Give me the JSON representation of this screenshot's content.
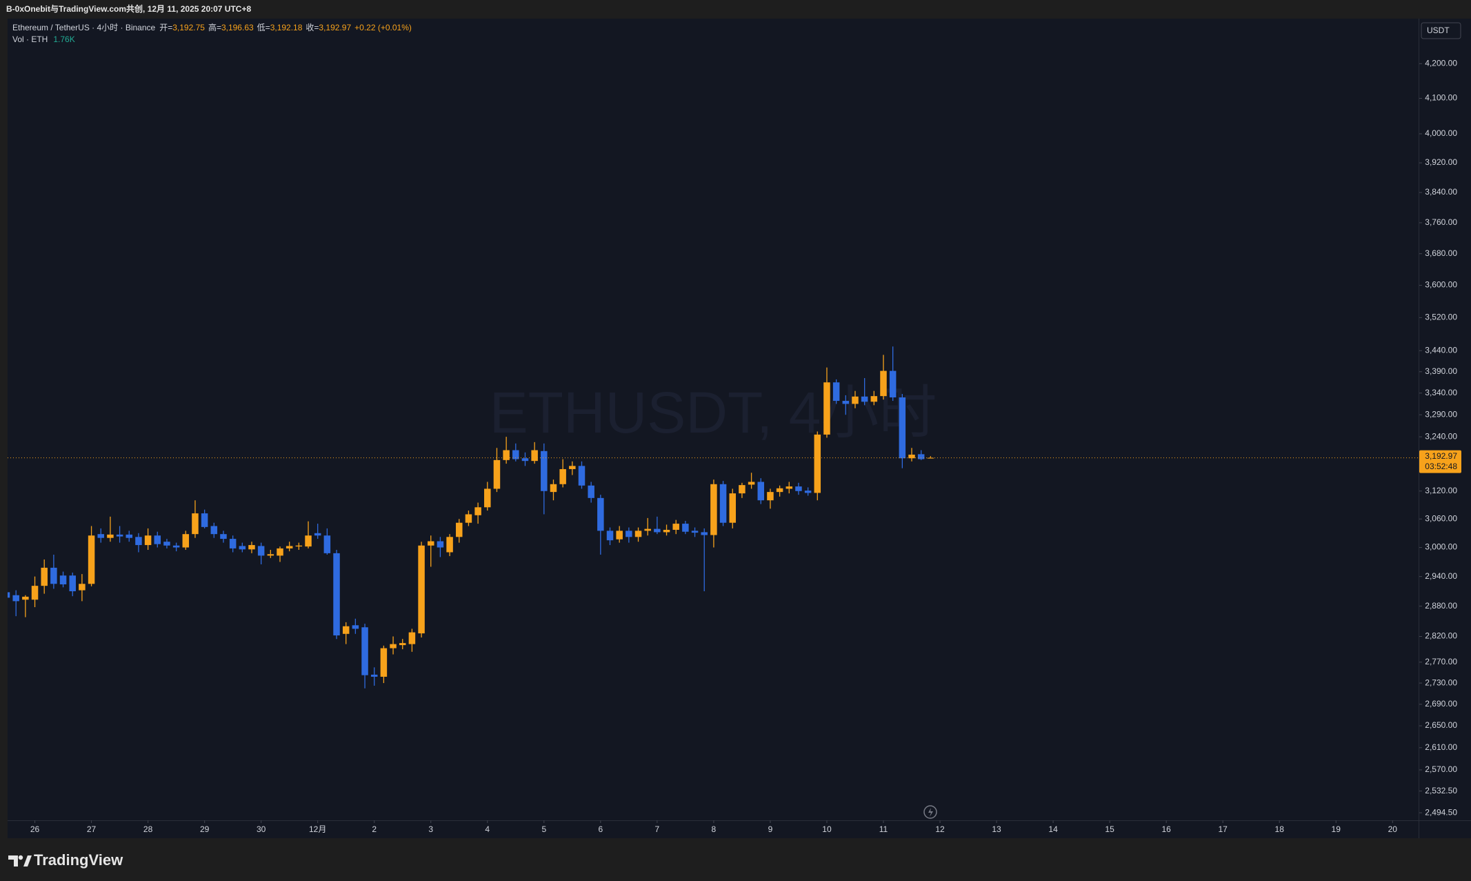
{
  "header": {
    "text": "B-0xOnebit与TradingView.com共创, 12月 11, 2025 20:07 UTC+8"
  },
  "chart_data": {
    "type": "candlestick",
    "symbol": "Ethereum / TetherUS · 4小时 · Binance",
    "ohlc_legend": [
      {
        "key": "开=",
        "value": "3,192.75"
      },
      {
        "key": "高=",
        "value": "3,196.63"
      },
      {
        "key": "低=",
        "value": "3,192.18"
      },
      {
        "key": "收=",
        "value": "3,192.97"
      }
    ],
    "change": "+0.22 (+0.01%)",
    "volume_legend": {
      "name": "Vol · ETH",
      "value": "1.76K"
    },
    "watermark": "ETHUSDT, 4小时",
    "currency": "USDT",
    "up_color": "#f7a21b",
    "down_color": "#2f6be0",
    "log_scale": true,
    "grid": false,
    "x": [
      0,
      1,
      2,
      3,
      4,
      5,
      6,
      7,
      8,
      9,
      10,
      11,
      12,
      13,
      14,
      15,
      16,
      17,
      18,
      19,
      20,
      21,
      22,
      23,
      24,
      25,
      26,
      27,
      28,
      29,
      30,
      31,
      32,
      33,
      34,
      35,
      36,
      37,
      38,
      39,
      40,
      41,
      42,
      43,
      44,
      45,
      46,
      47,
      48,
      49,
      50,
      51,
      52,
      53,
      54,
      55,
      56,
      57,
      58,
      59,
      60,
      61,
      62,
      63,
      64,
      65,
      66,
      67,
      68,
      69,
      70,
      71,
      72,
      73,
      74,
      75,
      76,
      77,
      78,
      79,
      80,
      81,
      82,
      83,
      84,
      85,
      86,
      87,
      88,
      89,
      90,
      91,
      92,
      93,
      94,
      95,
      96,
      97,
      98
    ],
    "ohlc": [
      [
        2908,
        2935,
        2885,
        2897
      ],
      [
        2902,
        2912,
        2860,
        2890
      ],
      [
        2893,
        2902,
        2858,
        2899
      ],
      [
        2893,
        2940,
        2878,
        2921
      ],
      [
        2921,
        2975,
        2905,
        2958
      ],
      [
        2958,
        2985,
        2915,
        2925
      ],
      [
        2942,
        2950,
        2918,
        2924
      ],
      [
        2942,
        2948,
        2900,
        2910
      ],
      [
        2912,
        2945,
        2890,
        2925
      ],
      [
        2925,
        3045,
        2920,
        3025
      ],
      [
        3028,
        3040,
        3010,
        3020
      ],
      [
        3020,
        3065,
        3012,
        3027
      ],
      [
        3027,
        3045,
        3010,
        3023
      ],
      [
        3027,
        3035,
        3012,
        3020
      ],
      [
        3022,
        3030,
        2990,
        3005
      ],
      [
        3005,
        3040,
        2995,
        3025
      ],
      [
        3025,
        3033,
        3000,
        3007
      ],
      [
        3012,
        3018,
        2998,
        3004
      ],
      [
        3004,
        3010,
        2992,
        3000
      ],
      [
        3000,
        3035,
        2995,
        3028
      ],
      [
        3028,
        3100,
        3020,
        3072
      ],
      [
        3072,
        3080,
        3040,
        3043
      ],
      [
        3045,
        3052,
        3020,
        3028
      ],
      [
        3028,
        3035,
        3010,
        3018
      ],
      [
        3018,
        3025,
        2990,
        2998
      ],
      [
        3003,
        3010,
        2990,
        2996
      ],
      [
        2996,
        3012,
        2988,
        3005
      ],
      [
        3003,
        3010,
        2965,
        2983
      ],
      [
        2983,
        2995,
        2978,
        2986
      ],
      [
        2983,
        3002,
        2970,
        2998
      ],
      [
        2998,
        3012,
        2992,
        3003
      ],
      [
        3002,
        3010,
        2995,
        3004
      ],
      [
        3002,
        3055,
        2998,
        3025
      ],
      [
        3030,
        3050,
        3018,
        3025
      ],
      [
        3025,
        3040,
        2985,
        2988
      ],
      [
        2988,
        2995,
        2815,
        2822
      ],
      [
        2825,
        2848,
        2805,
        2840
      ],
      [
        2842,
        2855,
        2825,
        2835
      ],
      [
        2838,
        2845,
        2720,
        2745
      ],
      [
        2746,
        2760,
        2725,
        2742
      ],
      [
        2742,
        2802,
        2730,
        2797
      ],
      [
        2797,
        2820,
        2785,
        2805
      ],
      [
        2803,
        2815,
        2795,
        2807
      ],
      [
        2805,
        2835,
        2790,
        2828
      ],
      [
        2826,
        3012,
        2818,
        3004
      ],
      [
        3004,
        3025,
        2960,
        3013
      ],
      [
        3013,
        3022,
        2980,
        3000
      ],
      [
        2990,
        3028,
        2982,
        3022
      ],
      [
        3022,
        3060,
        3010,
        3052
      ],
      [
        3052,
        3078,
        3045,
        3070
      ],
      [
        3068,
        3095,
        3050,
        3085
      ],
      [
        3085,
        3140,
        3078,
        3125
      ],
      [
        3125,
        3215,
        3118,
        3188
      ],
      [
        3188,
        3240,
        3180,
        3210
      ],
      [
        3210,
        3225,
        3185,
        3190
      ],
      [
        3192,
        3205,
        3175,
        3186
      ],
      [
        3186,
        3228,
        3180,
        3210
      ],
      [
        3208,
        3225,
        3070,
        3120
      ],
      [
        3118,
        3145,
        3100,
        3135
      ],
      [
        3135,
        3190,
        3128,
        3168
      ],
      [
        3168,
        3185,
        3155,
        3175
      ],
      [
        3175,
        3185,
        3125,
        3132
      ],
      [
        3132,
        3140,
        3095,
        3105
      ],
      [
        3105,
        3112,
        2985,
        3035
      ],
      [
        3035,
        3042,
        3005,
        3015
      ],
      [
        3017,
        3045,
        3010,
        3035
      ],
      [
        3035,
        3042,
        3010,
        3022
      ],
      [
        3022,
        3042,
        3012,
        3035
      ],
      [
        3035,
        3062,
        3025,
        3039
      ],
      [
        3039,
        3065,
        3028,
        3032
      ],
      [
        3032,
        3048,
        3025,
        3037
      ],
      [
        3037,
        3058,
        3028,
        3050
      ],
      [
        3050,
        3056,
        3028,
        3033
      ],
      [
        3035,
        3042,
        3022,
        3031
      ],
      [
        3032,
        3040,
        2910,
        3026
      ],
      [
        3026,
        3145,
        3000,
        3135
      ],
      [
        3135,
        3142,
        3045,
        3052
      ],
      [
        3052,
        3125,
        3040,
        3115
      ],
      [
        3115,
        3138,
        3105,
        3133
      ],
      [
        3134,
        3160,
        3125,
        3140
      ],
      [
        3140,
        3148,
        3092,
        3100
      ],
      [
        3100,
        3125,
        3082,
        3118
      ],
      [
        3118,
        3132,
        3108,
        3126
      ],
      [
        3125,
        3140,
        3115,
        3130
      ],
      [
        3130,
        3138,
        3112,
        3120
      ],
      [
        3121,
        3128,
        3110,
        3116
      ],
      [
        3116,
        3252,
        3100,
        3245
      ],
      [
        3245,
        3400,
        3238,
        3365
      ],
      [
        3365,
        3372,
        3315,
        3322
      ],
      [
        3322,
        3335,
        3290,
        3315
      ],
      [
        3315,
        3345,
        3305,
        3332
      ],
      [
        3332,
        3375,
        3312,
        3320
      ],
      [
        3320,
        3345,
        3312,
        3333
      ],
      [
        3333,
        3430,
        3325,
        3392
      ],
      [
        3392,
        3450,
        3322,
        3330
      ],
      [
        3330,
        3338,
        3170,
        3192
      ],
      [
        3192,
        3215,
        3185,
        3200
      ],
      [
        3201,
        3210,
        3188,
        3190
      ],
      [
        3192.75,
        3196.63,
        3192.18,
        3192.97
      ]
    ],
    "xlim": [
      0.108,
      149.76
    ],
    "xticks": [
      {
        "value": 3,
        "label": "26"
      },
      {
        "value": 9,
        "label": "27"
      },
      {
        "value": 15,
        "label": "28"
      },
      {
        "value": 21,
        "label": "29"
      },
      {
        "value": 27,
        "label": "30"
      },
      {
        "value": 33,
        "label": "12月"
      },
      {
        "value": 39,
        "label": "2"
      },
      {
        "value": 45,
        "label": "3"
      },
      {
        "value": 51,
        "label": "4"
      },
      {
        "value": 57,
        "label": "5"
      },
      {
        "value": 63,
        "label": "6"
      },
      {
        "value": 69,
        "label": "7"
      },
      {
        "value": 75,
        "label": "8"
      },
      {
        "value": 81,
        "label": "9"
      },
      {
        "value": 87,
        "label": "10"
      },
      {
        "value": 93,
        "label": "11"
      },
      {
        "value": 99,
        "label": "12"
      },
      {
        "value": 105,
        "label": "13"
      },
      {
        "value": 111,
        "label": "14"
      },
      {
        "value": 117,
        "label": "15"
      },
      {
        "value": 123,
        "label": "16"
      },
      {
        "value": 129,
        "label": "17"
      },
      {
        "value": 135,
        "label": "18"
      },
      {
        "value": 141,
        "label": "19"
      },
      {
        "value": 147,
        "label": "20"
      }
    ],
    "ylim": [
      2481.5,
      4333.6
    ],
    "yticks": [
      {
        "value": 4200,
        "label": "4,200.00"
      },
      {
        "value": 4100,
        "label": "4,100.00"
      },
      {
        "value": 4000,
        "label": "4,000.00"
      },
      {
        "value": 3920,
        "label": "3,920.00"
      },
      {
        "value": 3840,
        "label": "3,840.00"
      },
      {
        "value": 3760,
        "label": "3,760.00"
      },
      {
        "value": 3680,
        "label": "3,680.00"
      },
      {
        "value": 3600,
        "label": "3,600.00"
      },
      {
        "value": 3520,
        "label": "3,520.00"
      },
      {
        "value": 3440,
        "label": "3,440.00"
      },
      {
        "value": 3390,
        "label": "3,390.00"
      },
      {
        "value": 3340,
        "label": "3,340.00"
      },
      {
        "value": 3290,
        "label": "3,290.00"
      },
      {
        "value": 3240,
        "label": "3,240.00"
      },
      {
        "value": 3120,
        "label": "3,120.00"
      },
      {
        "value": 3060,
        "label": "3,060.00"
      },
      {
        "value": 3000,
        "label": "3,000.00"
      },
      {
        "value": 2940,
        "label": "2,940.00"
      },
      {
        "value": 2880,
        "label": "2,880.00"
      },
      {
        "value": 2820,
        "label": "2,820.00"
      },
      {
        "value": 2770,
        "label": "2,770.00"
      },
      {
        "value": 2730,
        "label": "2,730.00"
      },
      {
        "value": 2690,
        "label": "2,690.00"
      },
      {
        "value": 2650,
        "label": "2,650.00"
      },
      {
        "value": 2610,
        "label": "2,610.00"
      },
      {
        "value": 2570,
        "label": "2,570.00"
      },
      {
        "value": 2532.5,
        "label": "2,532.50"
      },
      {
        "value": 2494.5,
        "label": "2,494.50"
      }
    ],
    "last_price": {
      "label": "3,192.97",
      "countdown": "03:52:48"
    }
  },
  "footer": {
    "brand": "TradingView"
  }
}
